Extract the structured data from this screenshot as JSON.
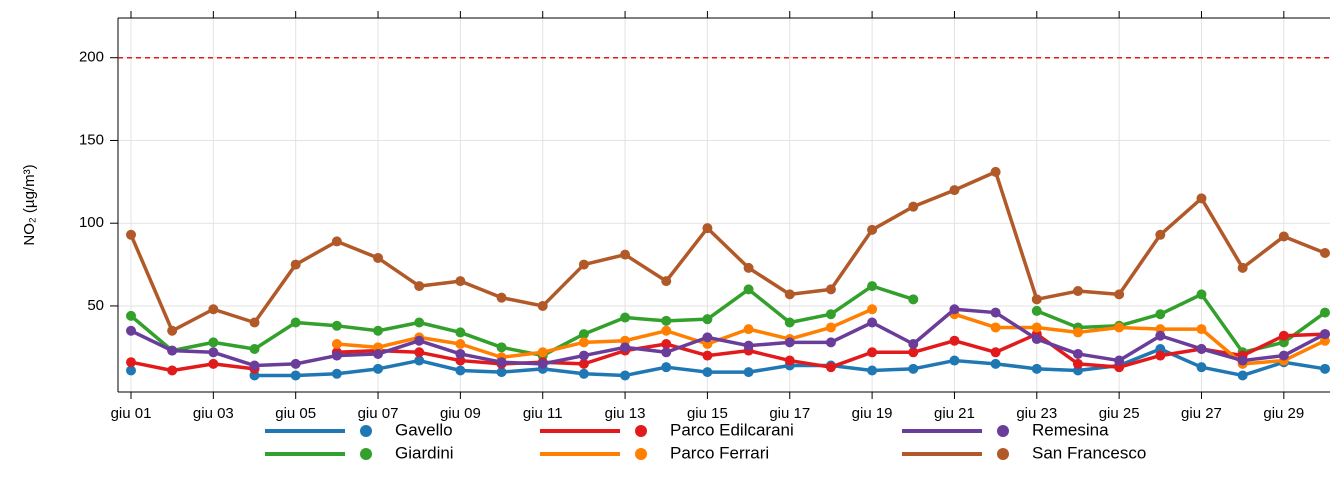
{
  "chart_data": {
    "type": "line",
    "y_label": "NO₂ (µg/m³)",
    "categories": [
      "giu 01",
      null,
      "giu 03",
      null,
      "giu 05",
      null,
      "giu 07",
      null,
      "giu 09",
      null,
      "giu 11",
      null,
      "giu 13",
      null,
      "giu 15",
      null,
      "giu 17",
      null,
      "giu 19",
      null,
      "giu 21",
      null,
      "giu 23",
      null,
      "giu 25",
      null,
      "giu 27",
      null,
      "giu 29",
      null
    ],
    "ylim": [
      -2,
      224
    ],
    "yticks": [
      50,
      100,
      150,
      200
    ],
    "grid": true,
    "reference_line": {
      "value": 200,
      "color": "#e31a1c"
    },
    "series": [
      {
        "name": "Gavello",
        "color": "#1f78b4",
        "values": [
          11,
          null,
          null,
          8,
          8,
          9,
          12,
          17,
          11,
          10,
          12,
          9,
          8,
          13,
          10,
          10,
          14,
          14,
          11,
          12,
          17,
          15,
          12,
          11,
          14,
          24,
          13,
          8,
          16,
          12
        ]
      },
      {
        "name": "Giardini",
        "color": "#33a02c",
        "values": [
          44,
          23,
          28,
          24,
          40,
          38,
          35,
          40,
          34,
          25,
          20,
          33,
          43,
          41,
          42,
          60,
          40,
          45,
          62,
          54,
          null,
          null,
          47,
          37,
          38,
          45,
          57,
          22,
          28,
          46
        ]
      },
      {
        "name": "Parco Edilcarani",
        "color": "#e31a1c",
        "values": [
          16,
          11,
          15,
          12,
          null,
          22,
          23,
          22,
          17,
          15,
          16,
          15,
          23,
          27,
          20,
          23,
          17,
          13,
          22,
          22,
          29,
          22,
          33,
          15,
          13,
          20,
          24,
          20,
          32,
          33
        ]
      },
      {
        "name": "Parco Ferrari",
        "color": "#ff7f00",
        "values": [
          null,
          null,
          null,
          null,
          null,
          27,
          25,
          31,
          27,
          19,
          22,
          28,
          29,
          35,
          27,
          36,
          30,
          37,
          48,
          null,
          45,
          37,
          37,
          34,
          37,
          36,
          36,
          15,
          17,
          29
        ]
      },
      {
        "name": "Remesina",
        "color": "#6a3d9a",
        "values": [
          35,
          23,
          22,
          14,
          15,
          20,
          21,
          29,
          21,
          16,
          15,
          20,
          25,
          22,
          31,
          26,
          28,
          28,
          40,
          27,
          48,
          46,
          30,
          21,
          17,
          32,
          24,
          17,
          20,
          33
        ]
      },
      {
        "name": "San Francesco",
        "color": "#b15928",
        "values": [
          93,
          35,
          48,
          40,
          75,
          89,
          79,
          62,
          65,
          55,
          50,
          75,
          81,
          65,
          97,
          73,
          57,
          60,
          96,
          110,
          120,
          131,
          54,
          59,
          57,
          93,
          115,
          73,
          92,
          82
        ]
      }
    ]
  }
}
